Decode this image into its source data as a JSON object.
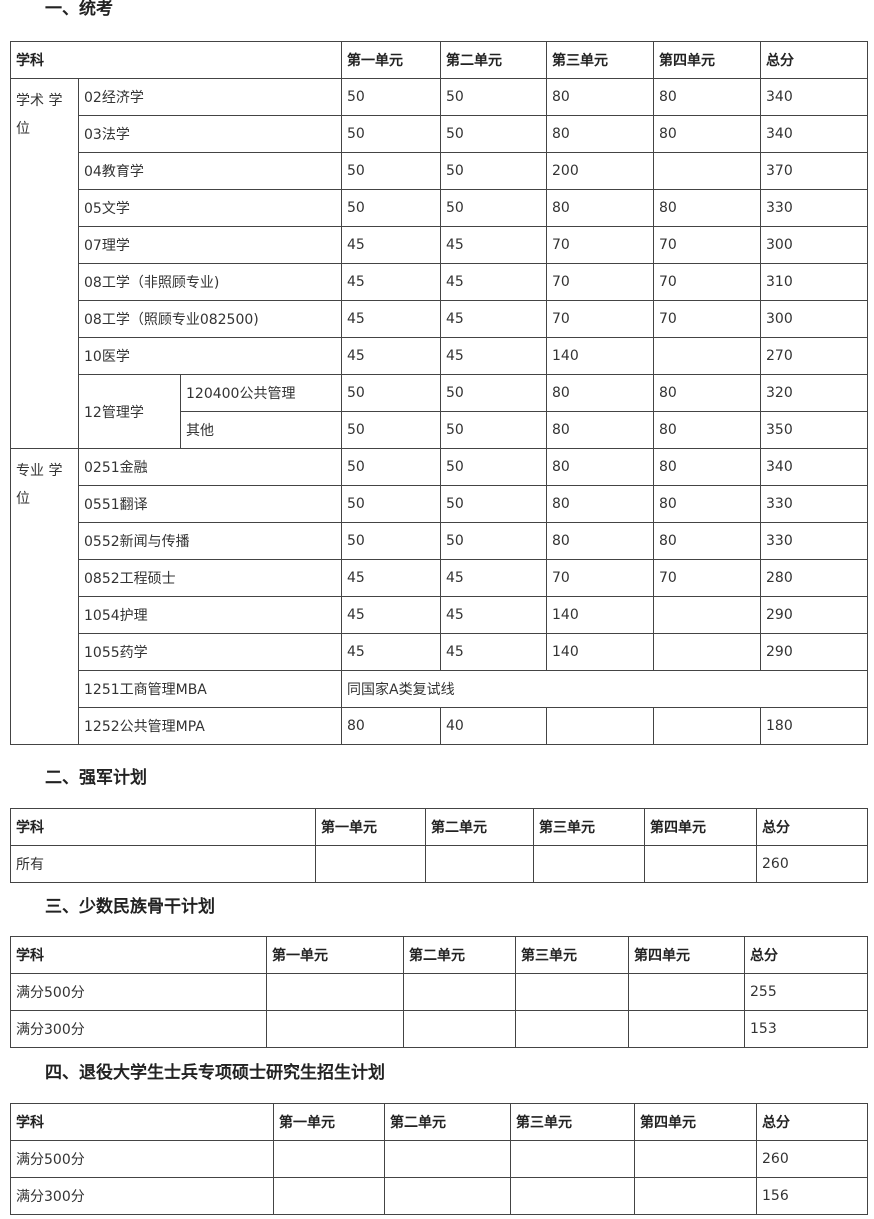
{
  "sections": [
    {
      "heading": "一、统考",
      "headers": [
        "学科",
        "第一单元",
        "第二单元",
        "第三单元",
        "第四单元",
        "总分"
      ],
      "groups": [
        "学术 学位",
        "专业 学位"
      ],
      "rows": [
        {
          "name": "02经济学",
          "values": [
            "50",
            "50",
            "80",
            "80",
            "340"
          ]
        },
        {
          "name": "03法学",
          "values": [
            "50",
            "50",
            "80",
            "80",
            "340"
          ]
        },
        {
          "name": "04教育学",
          "values": [
            "50",
            "50",
            "200",
            "",
            "370"
          ]
        },
        {
          "name": "05文学",
          "values": [
            "50",
            "50",
            "80",
            "80",
            "330"
          ]
        },
        {
          "name": "07理学",
          "values": [
            "45",
            "45",
            "70",
            "70",
            "300"
          ]
        },
        {
          "name": "08工学（非照顾专业)",
          "values": [
            "45",
            "45",
            "70",
            "70",
            "310"
          ]
        },
        {
          "name": "08工学（照顾专业082500)",
          "values": [
            "45",
            "45",
            "70",
            "70",
            "300"
          ]
        },
        {
          "name": "10医学",
          "values": [
            "45",
            "45",
            "140",
            "",
            "270"
          ]
        },
        {
          "name": "12管理学",
          "sub": "120400公共管理",
          "values": [
            "50",
            "50",
            "80",
            "80",
            "320"
          ]
        },
        {
          "sub": "其他",
          "values": [
            "50",
            "50",
            "80",
            "80",
            "350"
          ]
        },
        {
          "name": "0251金融",
          "values": [
            "50",
            "50",
            "80",
            "80",
            "340"
          ]
        },
        {
          "name": "0551翻译",
          "values": [
            "50",
            "50",
            "80",
            "80",
            "330"
          ]
        },
        {
          "name": "0552新闻与传播",
          "values": [
            "50",
            "50",
            "80",
            "80",
            "330"
          ]
        },
        {
          "name": "0852工程硕士",
          "values": [
            "45",
            "45",
            "70",
            "70",
            "280"
          ]
        },
        {
          "name": "1054护理",
          "values": [
            "45",
            "45",
            "140",
            "",
            "290"
          ]
        },
        {
          "name": "1055药学",
          "values": [
            "45",
            "45",
            "140",
            "",
            "290"
          ]
        },
        {
          "name": "1251工商管理MBA",
          "note": "同国家A类复试线"
        },
        {
          "name": "1252公共管理MPA",
          "values": [
            "80",
            "40",
            "",
            "",
            "180"
          ]
        }
      ]
    },
    {
      "heading": "二、强军计划",
      "headers": [
        "学科",
        "第一单元",
        "第二单元",
        "第三单元",
        "第四单元",
        "总分"
      ],
      "rows": [
        {
          "name": "所有",
          "values": [
            "",
            "",
            "",
            "",
            "260"
          ]
        }
      ]
    },
    {
      "heading": "三、少数民族骨干计划",
      "headers": [
        "学科",
        "第一单元",
        "第二单元",
        "第三单元",
        "第四单元",
        "总分"
      ],
      "rows": [
        {
          "name": "满分500分",
          "values": [
            "",
            "",
            "",
            "",
            "255"
          ]
        },
        {
          "name": "满分300分",
          "values": [
            "",
            "",
            "",
            "",
            "153"
          ]
        }
      ]
    },
    {
      "heading": "四、退役大学生士兵专项硕士研究生招生计划",
      "headers": [
        "学科",
        "第一单元",
        "第二单元",
        "第三单元",
        "第四单元",
        "总分"
      ],
      "rows": [
        {
          "name": "满分500分",
          "values": [
            "",
            "",
            "",
            "",
            "260"
          ]
        },
        {
          "name": "满分300分",
          "values": [
            "",
            "",
            "",
            "",
            "156"
          ]
        }
      ]
    }
  ]
}
